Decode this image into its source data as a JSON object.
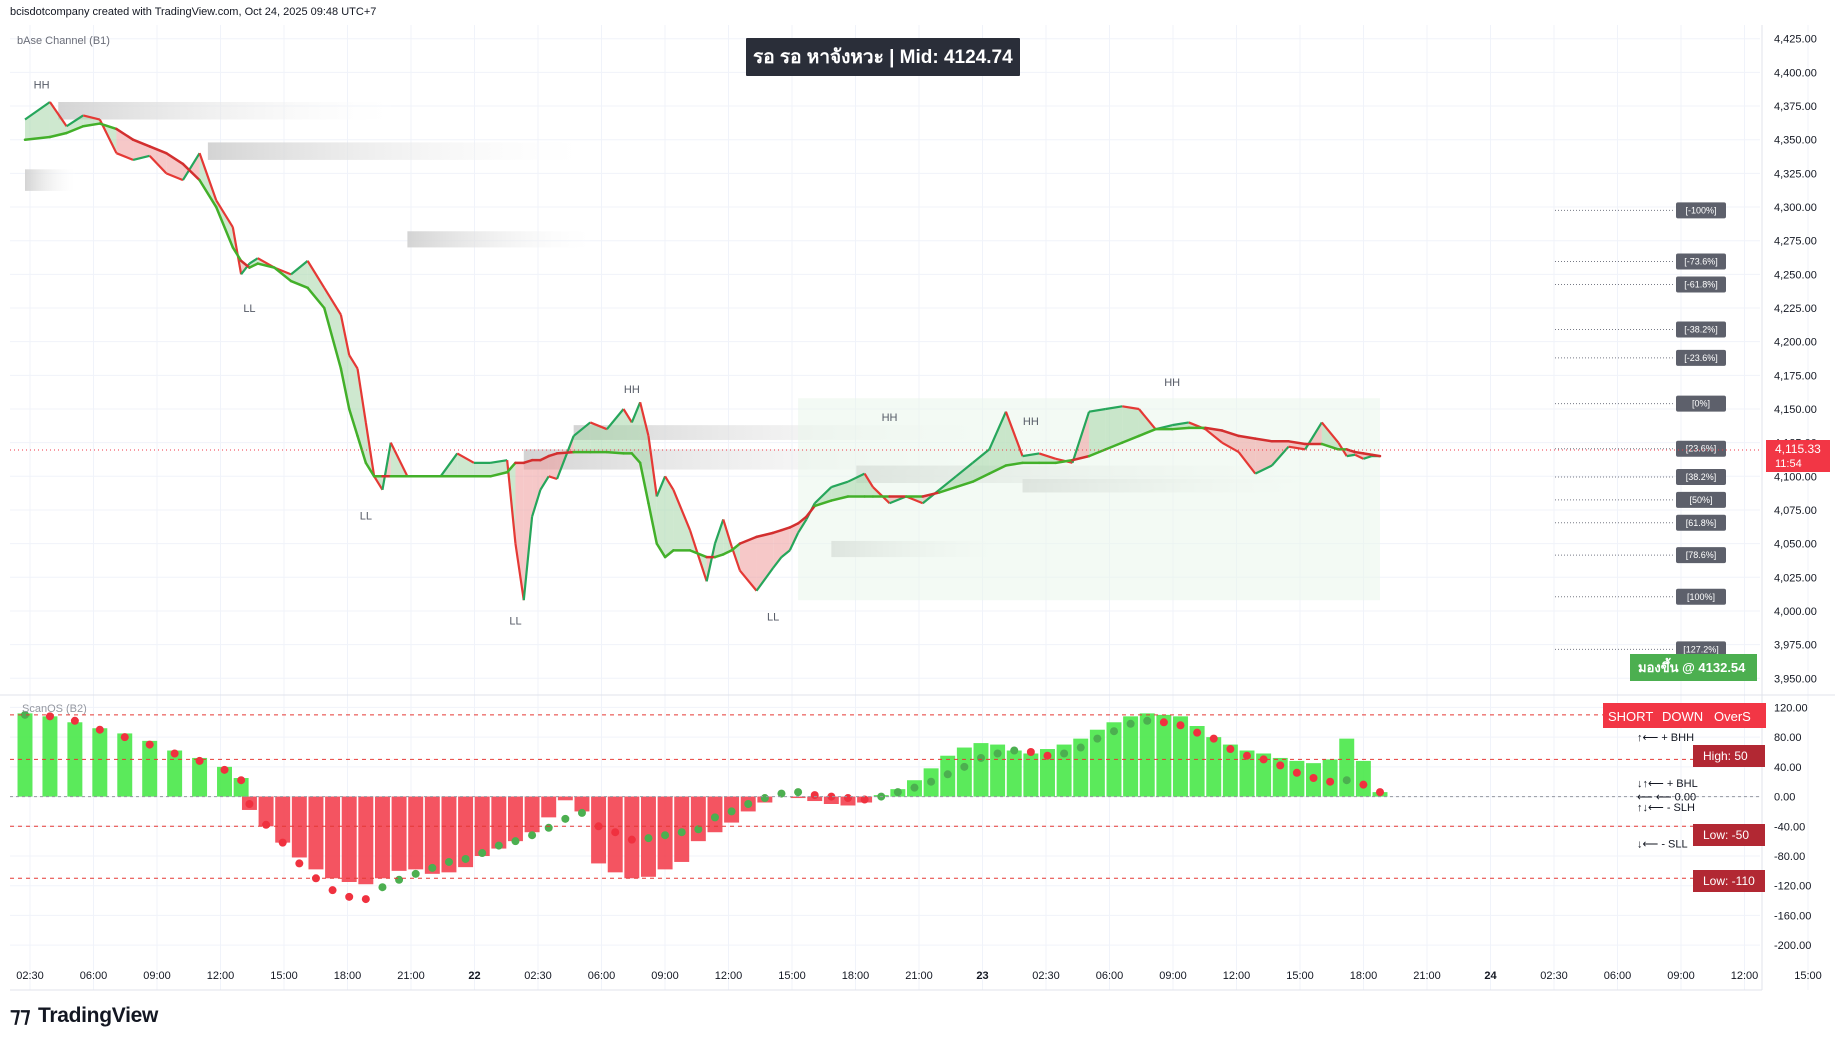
{
  "header": {
    "credit": "bcisdotcompany created with TradingView.com, Oct 24, 2025 09:48 UTC+7",
    "indicator_main": "bAse Channel (B1)",
    "indicator_osc": "ScanOS (B2)",
    "banner": "รอ รอ หาจังหวะ | Mid: 4124.74"
  },
  "price_axis": {
    "ticks": [
      "4,425.00",
      "4,400.00",
      "4,375.00",
      "4,350.00",
      "4,325.00",
      "4,300.00",
      "4,275.00",
      "4,250.00",
      "4,225.00",
      "4,200.00",
      "4,175.00",
      "4,150.00",
      "4,125.00",
      "4,100.00",
      "4,075.00",
      "4,050.00",
      "4,025.00",
      "4,000.00",
      "3,975.00",
      "3,950.00"
    ],
    "current_price": "4,115.33",
    "countdown": "11:54",
    "signal_label": "มองขึ้น @ 4132.54"
  },
  "osc_axis": {
    "ticks": [
      "120.00",
      "80.00",
      "40.00",
      "0.00",
      "-40.00",
      "-80.00",
      "-120.00",
      "-160.00",
      "-200.00"
    ],
    "high_label": "High: 50",
    "low_label": "Low: -50",
    "low2_label": "Low: -110",
    "badges": [
      "SHORT",
      "DOWN",
      "OverS"
    ],
    "notes": [
      "↑⟵ + BHH",
      "↓↑⟵ + BHL",
      "⟵ ⟵ 0.00",
      "↑↓⟵ - SLH",
      "↓⟵ - SLL"
    ]
  },
  "time_axis": [
    "02:30",
    "06:00",
    "09:00",
    "12:00",
    "15:00",
    "18:00",
    "21:00",
    "22",
    "02:30",
    "06:00",
    "09:00",
    "12:00",
    "15:00",
    "18:00",
    "21:00",
    "23",
    "02:30",
    "06:00",
    "09:00",
    "12:00",
    "15:00",
    "18:00",
    "21:00",
    "24",
    "02:30",
    "06:00",
    "09:00",
    "12:00",
    "15:00"
  ],
  "fib_levels": [
    {
      "label": "[-100%]",
      "price": 4297.5
    },
    {
      "label": "[-73.6%]",
      "price": 4259.5
    },
    {
      "label": "[-61.8%]",
      "price": 4242.5
    },
    {
      "label": "[-38.2%]",
      "price": 4209.0
    },
    {
      "label": "[-23.6%]",
      "price": 4188.0
    },
    {
      "label": "[0%]",
      "price": 4154.0
    },
    {
      "label": "[23.6%]",
      "price": 4120.5
    },
    {
      "label": "[38.2%]",
      "price": 4099.5
    },
    {
      "label": "[50%]",
      "price": 4082.5
    },
    {
      "label": "[61.8%]",
      "price": 4065.5
    },
    {
      "label": "[78.6%]",
      "price": 4041.5
    },
    {
      "label": "[100%]",
      "price": 4010.5
    },
    {
      "label": "[127.2%]",
      "price": 3971.5
    }
  ],
  "swing_labels": [
    {
      "text": "HH",
      "t": 2,
      "price": 4388
    },
    {
      "text": "LL",
      "t": 27,
      "price": 4222
    },
    {
      "text": "LL",
      "t": 41,
      "price": 4068
    },
    {
      "text": "HH",
      "t": 73,
      "price": 4162
    },
    {
      "text": "LL",
      "t": 59,
      "price": 3990
    },
    {
      "text": "HH",
      "t": 104,
      "price": 4141
    },
    {
      "text": "LL",
      "t": 90,
      "price": 3993
    },
    {
      "text": "HH",
      "t": 121,
      "price": 4138
    },
    {
      "text": "HH",
      "t": 138,
      "price": 4167
    }
  ],
  "chart_data": {
    "type": "line",
    "title": "",
    "xlabel": "",
    "ylabel": "",
    "ylim": [
      3945,
      4430
    ],
    "x": [
      0,
      3,
      5,
      7,
      9,
      11,
      13,
      15,
      17,
      19,
      21,
      23,
      25,
      26,
      27,
      28,
      30,
      32,
      34,
      36,
      38,
      39,
      40,
      41,
      42,
      43,
      44,
      46,
      48,
      50,
      52,
      54,
      56,
      58,
      59,
      60,
      61,
      62,
      63,
      64,
      66,
      68,
      70,
      72,
      73,
      74,
      75,
      76,
      77,
      78,
      80,
      82,
      83,
      84,
      85,
      86,
      88,
      90,
      91,
      92,
      93,
      94,
      95,
      97,
      99,
      101,
      102,
      104,
      106,
      108,
      110,
      112,
      114,
      116,
      118,
      120,
      122,
      124,
      126,
      128,
      130,
      132,
      134,
      136,
      138,
      140,
      142,
      144,
      146,
      148,
      150,
      152,
      154,
      156,
      158,
      159,
      160,
      161,
      162,
      163
    ],
    "series": [
      {
        "name": "Price",
        "values": [
          4365,
          4378,
          4360,
          4368,
          4365,
          4340,
          4335,
          4338,
          4325,
          4320,
          4340,
          4305,
          4285,
          4250,
          4258,
          4262,
          4255,
          4250,
          4260,
          4240,
          4220,
          4190,
          4180,
          4140,
          4100,
          4090,
          4125,
          4100,
          4100,
          4100,
          4117,
          4110,
          4110,
          4112,
          4050,
          4008,
          4070,
          4090,
          4100,
          4098,
          4130,
          4140,
          4135,
          4150,
          4140,
          4155,
          4130,
          4085,
          4100,
          4090,
          4060,
          4022,
          4050,
          4068,
          4048,
          4030,
          4015,
          4032,
          4040,
          4045,
          4058,
          4068,
          4080,
          4092,
          4096,
          4102,
          4092,
          4080,
          4085,
          4080,
          4090,
          4100,
          4110,
          4120,
          4148,
          4115,
          4117,
          4113,
          4110,
          4148,
          4150,
          4152,
          4150,
          4135,
          4138,
          4140,
          4135,
          4125,
          4118,
          4102,
          4108,
          4122,
          4120,
          4140,
          4125,
          4115,
          4116,
          4113,
          4115,
          4115
        ]
      },
      {
        "name": "Basis",
        "values": [
          4350,
          4352,
          4355,
          4360,
          4362,
          4358,
          4350,
          4345,
          4340,
          4332,
          4320,
          4300,
          4270,
          4260,
          4255,
          4258,
          4255,
          4245,
          4240,
          4225,
          4180,
          4150,
          4130,
          4110,
          4100,
          4100,
          4100,
          4100,
          4100,
          4100,
          4100,
          4100,
          4100,
          4103,
          4110,
          4110,
          4112,
          4112,
          4115,
          4117,
          4118,
          4118,
          4118,
          4117,
          4117,
          4110,
          4080,
          4050,
          4040,
          4045,
          4045,
          4040,
          4040,
          4042,
          4045,
          4050,
          4055,
          4058,
          4060,
          4062,
          4065,
          4070,
          4078,
          4082,
          4085,
          4085,
          4085,
          4085,
          4085,
          4085,
          4088,
          4092,
          4096,
          4102,
          4108,
          4110,
          4110,
          4110,
          4112,
          4115,
          4120,
          4125,
          4130,
          4135,
          4135,
          4136,
          4136,
          4134,
          4130,
          4128,
          4126,
          4126,
          4124,
          4124,
          4120,
          4120,
          4118,
          4117,
          4116,
          4115
        ]
      }
    ]
  },
  "osc_data": {
    "x": [
      0,
      3,
      6,
      9,
      12,
      15,
      18,
      21,
      24,
      26,
      27,
      29,
      31,
      33,
      35,
      37,
      39,
      41,
      43,
      45,
      47,
      49,
      51,
      53,
      55,
      57,
      59,
      61,
      63,
      65,
      67,
      69,
      71,
      73,
      75,
      77,
      79,
      81,
      83,
      85,
      87,
      89,
      91,
      93,
      95,
      97,
      99,
      101,
      103,
      105,
      107,
      109,
      111,
      113,
      115,
      117,
      119,
      121,
      123,
      125,
      127,
      129,
      131,
      133,
      135,
      137,
      139,
      141,
      143,
      145,
      147,
      149,
      151,
      153,
      155,
      157,
      159,
      161,
      163
    ],
    "hist": [
      112,
      108,
      100,
      92,
      85,
      75,
      62,
      52,
      40,
      25,
      -18,
      -40,
      -62,
      -82,
      -98,
      -110,
      -115,
      -118,
      -110,
      -100,
      -98,
      -104,
      -102,
      -95,
      -80,
      -70,
      -60,
      -48,
      -28,
      -5,
      -20,
      -90,
      -102,
      -110,
      -108,
      -98,
      -88,
      -60,
      -48,
      -35,
      -20,
      -8,
      0,
      -2,
      -6,
      -10,
      -12,
      -8,
      2,
      10,
      22,
      38,
      55,
      66,
      72,
      70,
      62,
      58,
      64,
      70,
      78,
      90,
      100,
      108,
      112,
      110,
      108,
      95,
      80,
      70,
      62,
      58,
      52,
      48,
      45,
      50,
      78,
      48,
      6
    ],
    "signal": [
      110,
      108,
      102,
      90,
      80,
      70,
      58,
      48,
      36,
      22,
      -10,
      -38,
      -62,
      -90,
      -110,
      -126,
      -135,
      -138,
      -122,
      -112,
      -104,
      -96,
      -88,
      -84,
      -76,
      -66,
      -60,
      -52,
      -42,
      -30,
      -22,
      -40,
      -48,
      -58,
      -56,
      -52,
      -48,
      -44,
      -28,
      -20,
      -10,
      -2,
      4,
      6,
      2,
      0,
      -2,
      -4,
      0,
      6,
      12,
      20,
      30,
      40,
      52,
      58,
      62,
      60,
      55,
      58,
      66,
      78,
      88,
      98,
      102,
      100,
      96,
      86,
      78,
      64,
      55,
      50,
      42,
      32,
      25,
      20,
      22,
      16,
      6
    ]
  }
}
